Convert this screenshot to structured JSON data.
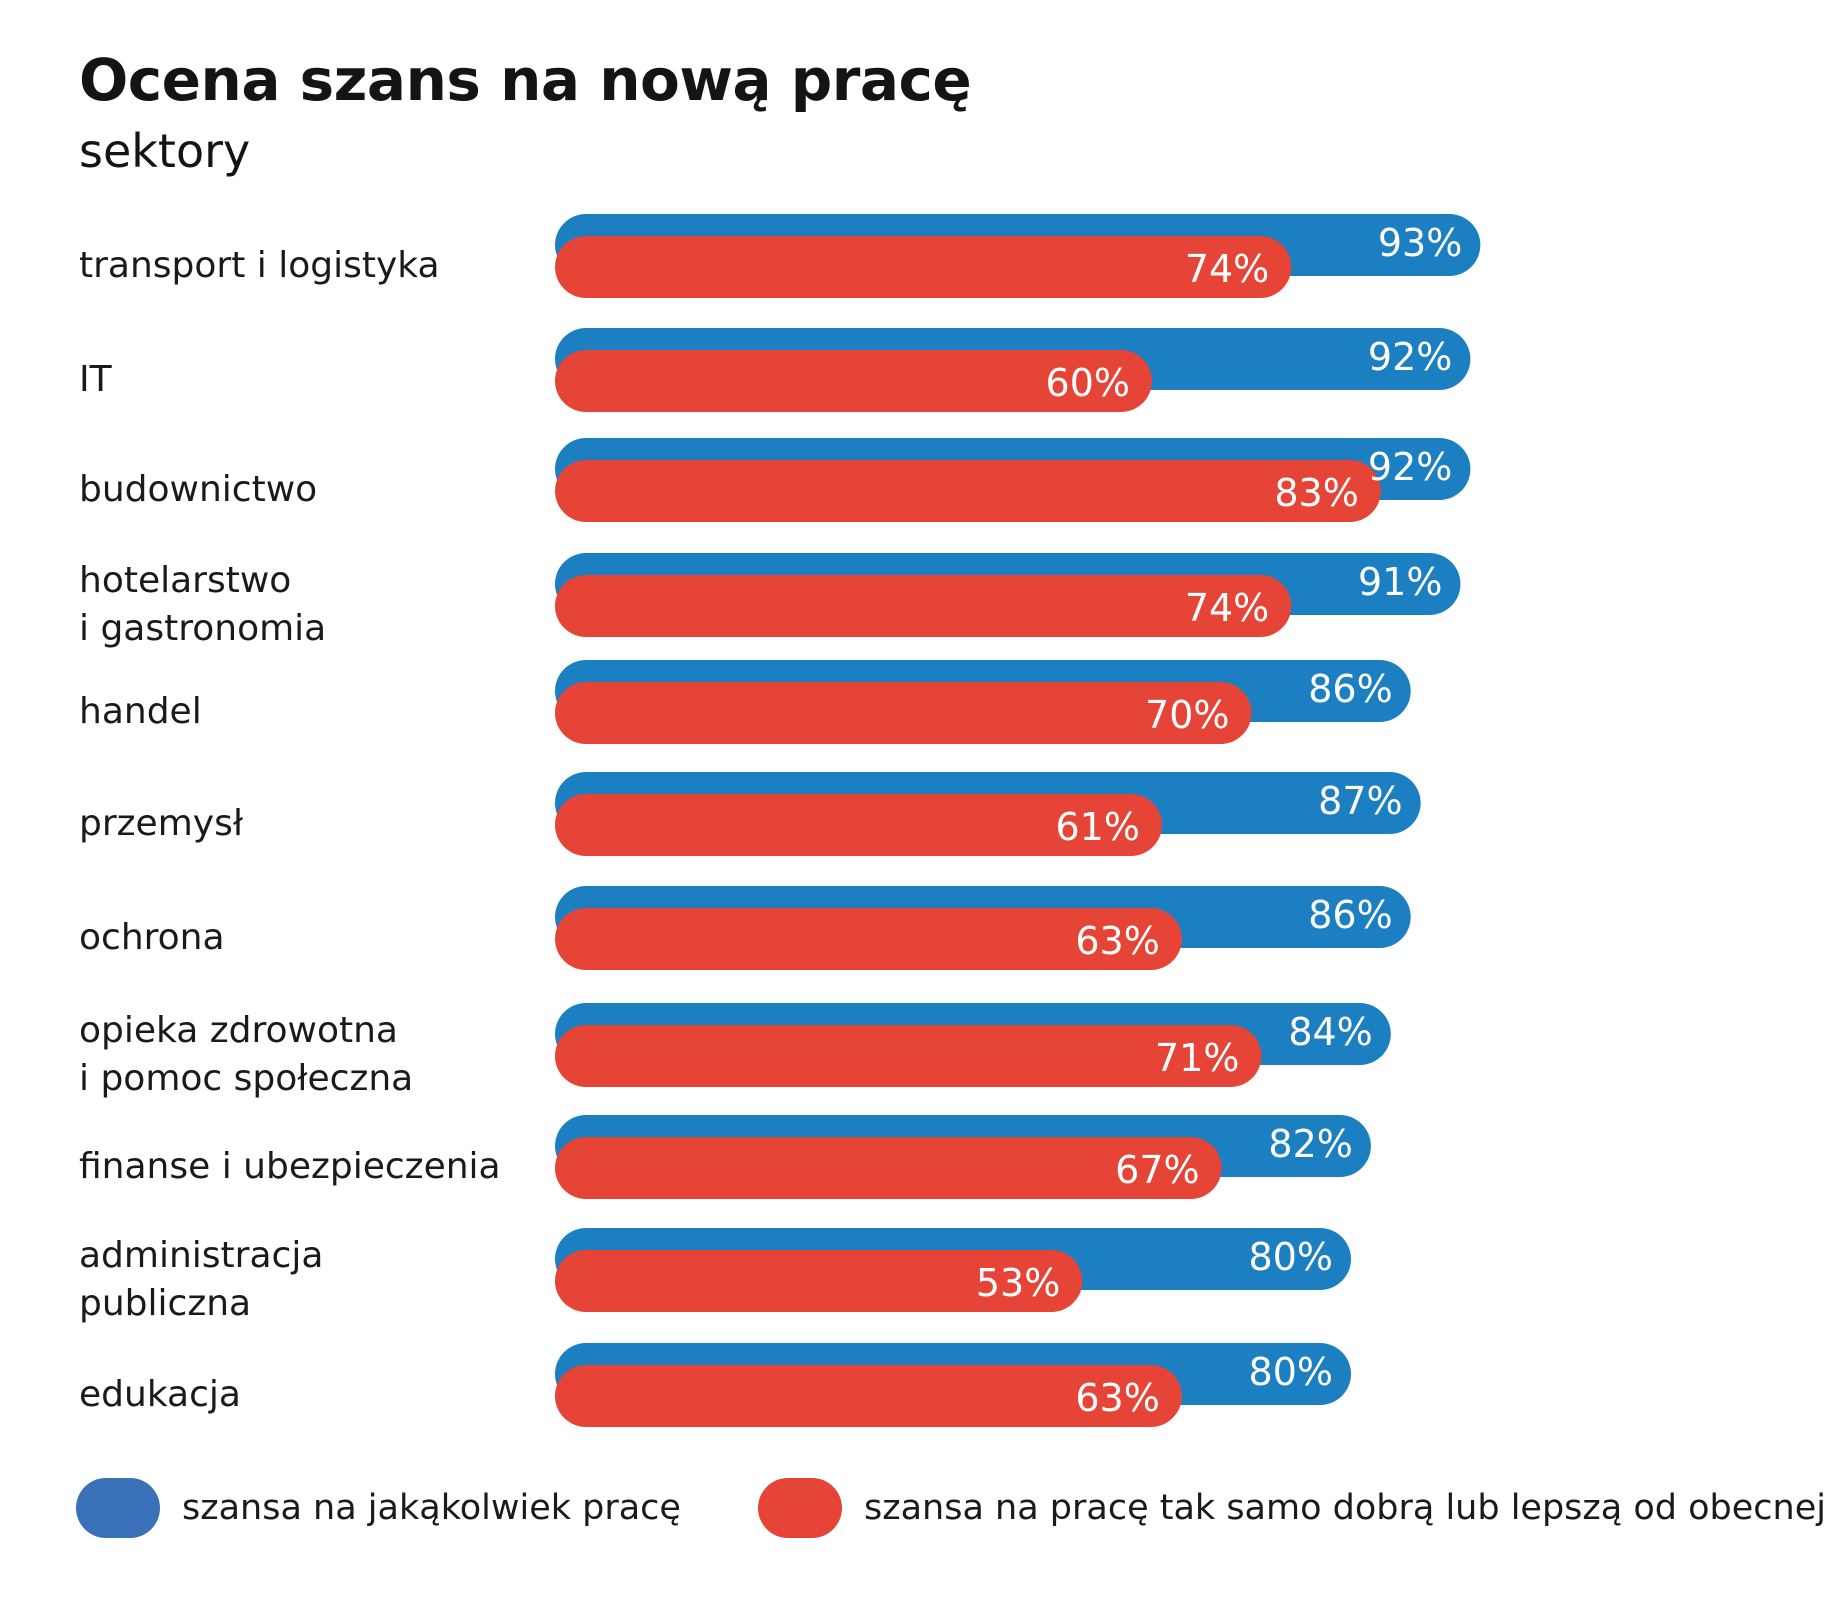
{
  "title": "Ocena szans na nową pracę",
  "subtitle": "sektory",
  "colors": {
    "any_job": "#1b7fc1",
    "good_job": "#e54436",
    "legend_any": "#3a70b8",
    "text_on_bar": "#ffffff"
  },
  "legend": [
    {
      "key": "any_job",
      "label": "szansa na jakąkolwiek pracę"
    },
    {
      "key": "good_job",
      "label": "szansa na pracę tak samo dobrą lub lepszą od obecnej"
    }
  ],
  "chart_data": {
    "type": "bar",
    "orientation": "horizontal",
    "categories": [
      [
        "transport i logistyka"
      ],
      [
        "IT"
      ],
      [
        "budownictwo"
      ],
      [
        "hotelarstwo",
        "i gastronomia"
      ],
      [
        "handel"
      ],
      [
        "przemysł"
      ],
      [
        "ochrona"
      ],
      [
        "opieka zdrowotna",
        "i pomoc społeczna"
      ],
      [
        "finanse i ubezpieczenia"
      ],
      [
        "administracja",
        "publiczna"
      ],
      [
        "edukacja"
      ]
    ],
    "series": [
      {
        "name": "szansa na jakąkolwiek pracę",
        "values": [
          93,
          92,
          92,
          91,
          86,
          87,
          86,
          84,
          82,
          80,
          80
        ],
        "labels": [
          "93%",
          "92%",
          "92%",
          "91%",
          "86%",
          "87%",
          "86%",
          "84%",
          "82%",
          "80%",
          "80%"
        ]
      },
      {
        "name": "szansa na pracę tak samo dobrą lub lepszą od obecnej",
        "values": [
          74,
          60,
          83,
          74,
          70,
          61,
          63,
          71,
          67,
          53,
          63
        ],
        "labels": [
          "74%",
          "60%",
          "83%",
          "74%",
          "70%",
          "61%",
          "63%",
          "71%",
          "67%",
          "53%",
          "63%"
        ]
      }
    ],
    "xlim": [
      0,
      100
    ],
    "grid": false,
    "axes_visible": false,
    "legend_position": "bottom"
  }
}
